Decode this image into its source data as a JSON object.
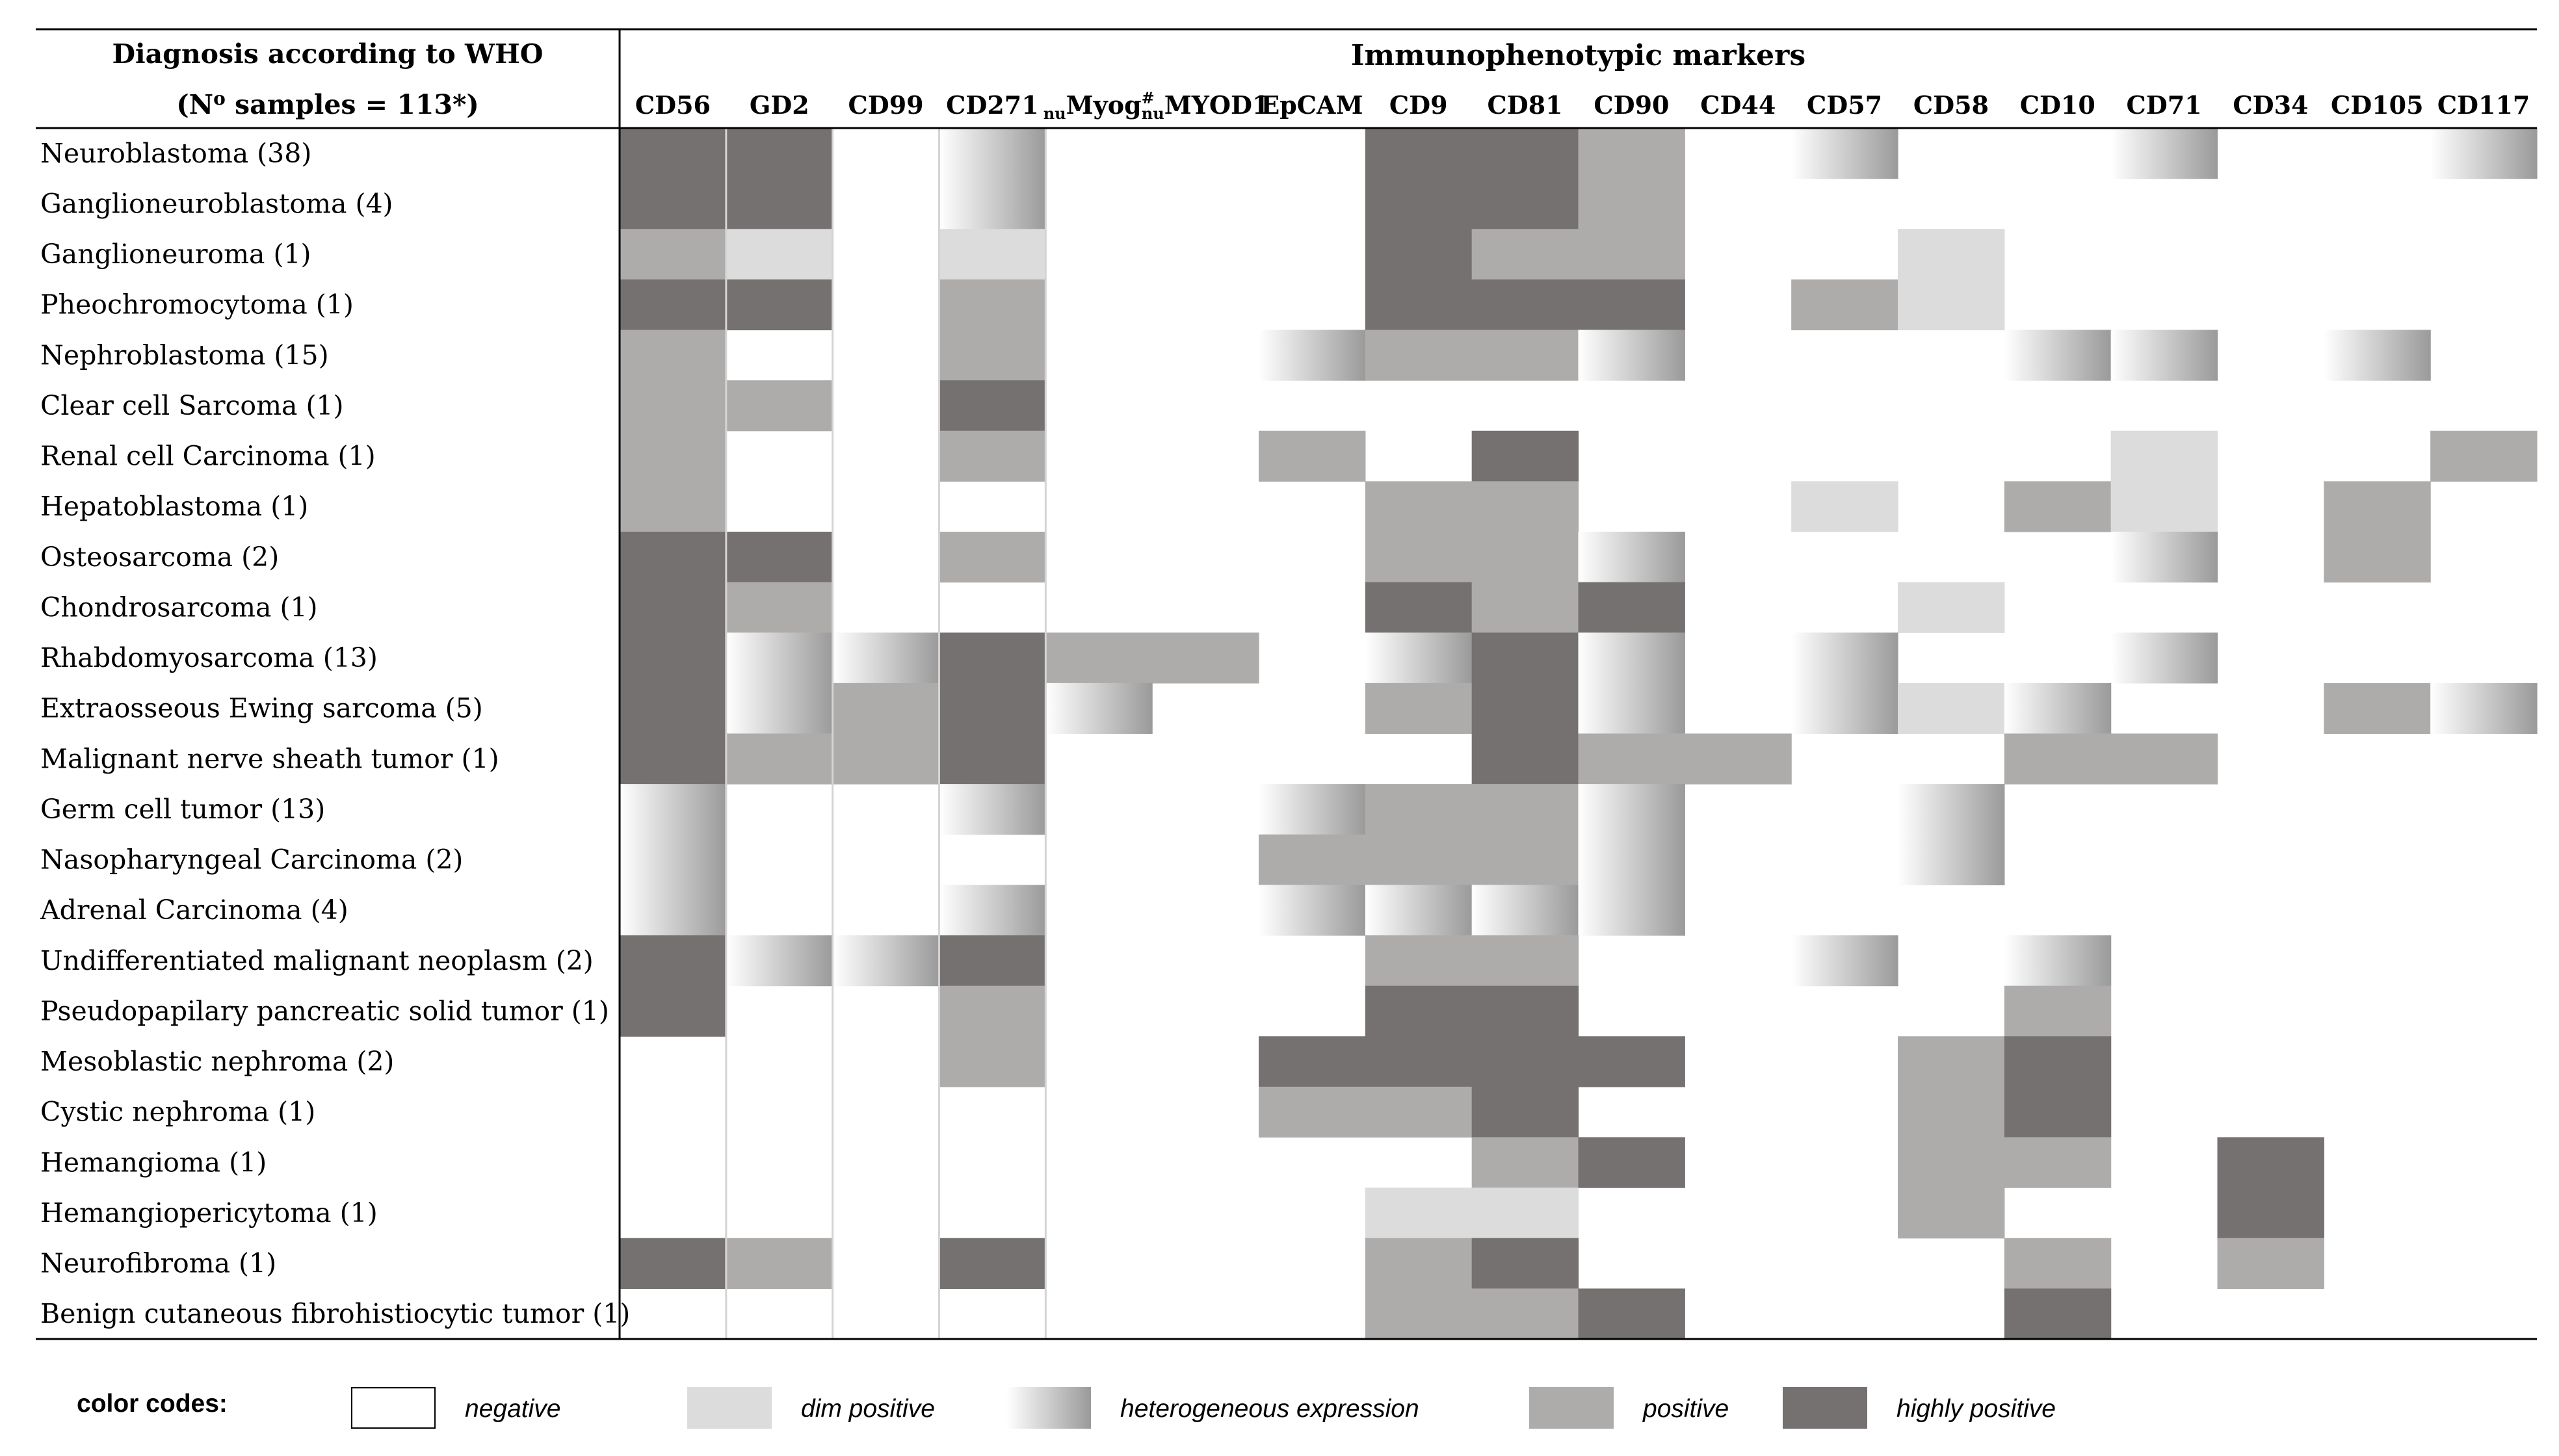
{
  "chart_data": {
    "type": "heatmap",
    "row_header_line1": "Diagnosis according to WHO",
    "row_header_line2": "(N",
    "row_header_sup": "o",
    "row_header_line2_rest": " samples = 113*)",
    "group_header": "Immunophenotypic markers",
    "columns": [
      {
        "pre": "",
        "text": "CD56",
        "sup": ""
      },
      {
        "pre": "",
        "text": "GD2",
        "sup": ""
      },
      {
        "pre": "",
        "text": "CD99",
        "sup": ""
      },
      {
        "pre": "",
        "text": "CD271",
        "sup": ""
      },
      {
        "pre": "nu",
        "text": "Myog",
        "sup": "#"
      },
      {
        "pre": "nu",
        "text": "MYOD1",
        "sup": ""
      },
      {
        "pre": "",
        "text": "EpCAM",
        "sup": ""
      },
      {
        "pre": "",
        "text": "CD9",
        "sup": ""
      },
      {
        "pre": "",
        "text": "CD81",
        "sup": ""
      },
      {
        "pre": "",
        "text": "CD90",
        "sup": ""
      },
      {
        "pre": "",
        "text": "CD44",
        "sup": ""
      },
      {
        "pre": "",
        "text": "CD57",
        "sup": ""
      },
      {
        "pre": "",
        "text": "CD58",
        "sup": ""
      },
      {
        "pre": "",
        "text": "CD10",
        "sup": ""
      },
      {
        "pre": "",
        "text": "CD71",
        "sup": ""
      },
      {
        "pre": "",
        "text": "CD34",
        "sup": ""
      },
      {
        "pre": "",
        "text": "CD105",
        "sup": ""
      },
      {
        "pre": "",
        "text": "CD117",
        "sup": ""
      }
    ],
    "rows": [
      {
        "label": "Neuroblastoma (38)",
        "values": "HHNTNNNHHPNTNNTNNT"
      },
      {
        "label": "Ganglioneuroblastoma (4)",
        "values": "HHNTNNNHHPNNNNNNNN"
      },
      {
        "label": "Ganglioneuroma (1)",
        "values": "PDNDNNNHPPNNDNNNNN"
      },
      {
        "label": "Pheochromocytoma (1)",
        "values": "HHNPNNNHHHNPDNNNNN"
      },
      {
        "label": "Nephroblastoma (15)",
        "values": "PNNPNNTPPTNNNTTNTN"
      },
      {
        "label": "Clear cell Sarcoma (1)",
        "values": "PPNHNNNNNNNNNNNNNN"
      },
      {
        "label": "Renal cell Carcinoma (1)",
        "values": "PNNPNNPNHNNNNNDNNP"
      },
      {
        "label": "Hepatoblastoma (1)",
        "values": "PNNNNNNPPNNDNPDNPN"
      },
      {
        "label": "Osteosarcoma (2)",
        "values": "HHNPNNNPPTNNNNTNPN"
      },
      {
        "label": "Chondrosarcoma (1)",
        "values": "HPNNNNNHPHNNDNNNNN"
      },
      {
        "label": "Rhabdomyosarcoma (13)",
        "values": "HTTHPPNTHTNTNNTNNN"
      },
      {
        "label": "Extraosseous Ewing sarcoma (5)",
        "values": "HTPHTNNPHTNTDTNNPT"
      },
      {
        "label": "Malignant nerve sheath tumor (1)",
        "values": "HPPHNNNNHPPNNPPNNN"
      },
      {
        "label": "Germ cell tumor (13)",
        "values": "TNNTNNTPPTNNTNNNNN"
      },
      {
        "label": "Nasopharyngeal Carcinoma (2)",
        "values": "TNNNNNPPPTNNTNNNNN"
      },
      {
        "label": "Adrenal Carcinoma (4)",
        "values": "TNNTNNTTTTNNNNNNNN"
      },
      {
        "label": "Undifferentiated malignant neoplasm (2)",
        "values": "HTTHNNNPPNNTNTNNNN"
      },
      {
        "label": "Pseudopapilary pancreatic solid tumor (1)",
        "values": "HNNPNNNHHNNNNPNNNN"
      },
      {
        "label": "Mesoblastic nephroma (2)",
        "values": "NNNPNNHHHHNNPHNNNN"
      },
      {
        "label": "Cystic nephroma (1)",
        "values": "NNNNNNPPHNNNPHNNNN"
      },
      {
        "label": "Hemangioma (1)",
        "values": "NNNNNNNNPHNNPPNHNN"
      },
      {
        "label": "Hemangiopericytoma (1)",
        "values": "NNNNNNNDDNNNPNNHNN"
      },
      {
        "label": "Neurofibroma (1)",
        "values": "HPNHNNNPHNNNNPNPNN"
      },
      {
        "label": "Benign cutaneous fibrohistiocytic tumor (1)",
        "values": "NNNNNNNPPHNNNHNNNN"
      }
    ],
    "value_codes": {
      "N": "negative",
      "D": "dim positive",
      "T": "heterogeneous expression",
      "P": "positive",
      "H": "highly positive"
    },
    "colors": {
      "negative": "#ffffff",
      "dim": "#dcdcdc",
      "hetero_start": "#ffffff",
      "hetero_end": "#9a9a9a",
      "positive": "#aeacab",
      "high": "#757170"
    }
  },
  "legend": {
    "title": "color codes:",
    "items": [
      {
        "key": "negative",
        "label": "negative"
      },
      {
        "key": "dim",
        "label": "dim positive"
      },
      {
        "key": "hetero",
        "label": "heterogeneous expression"
      },
      {
        "key": "positive",
        "label": "positive"
      },
      {
        "key": "high",
        "label": "highly positive"
      }
    ]
  }
}
